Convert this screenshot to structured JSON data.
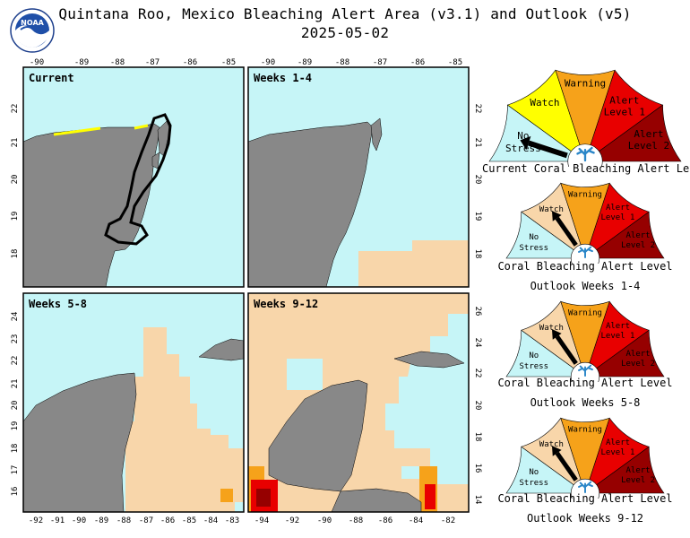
{
  "header": {
    "title": "Quintana Roo, Mexico Bleaching Alert Area (v3.1) and Outlook (v5)",
    "date": "2025-05-02",
    "logo_text": "NOAA"
  },
  "colors": {
    "no_stress": "#c6f5f7",
    "watch": "#f8d6aa",
    "warning": "#f6a21a",
    "alert1": "#e80000",
    "alert2": "#960000",
    "land": "#888888",
    "current_watch": "#ffff00",
    "dial_pointer": "#000000",
    "coral_icon": "#2a86c8"
  },
  "panels": [
    {
      "label": "Current",
      "lon_ticks_top": [
        "-90",
        "-89",
        "-88",
        "-87",
        "-86",
        "-85"
      ],
      "lat_ticks_left": [
        "22",
        "21",
        "20",
        "19",
        "18"
      ],
      "highlight": "Watch along north coast of Yucatán; Quintana Roo region outlined"
    },
    {
      "label": "Weeks 1-4",
      "lon_ticks_top": [
        "-90",
        "-89",
        "-88",
        "-87",
        "-86",
        "-85"
      ],
      "lat_ticks_right": [
        "22",
        "21",
        "20",
        "19",
        "18"
      ]
    },
    {
      "label": "Weeks 5-8",
      "lat_ticks_left": [
        "24",
        "23",
        "22",
        "21",
        "20",
        "19",
        "18",
        "17",
        "16"
      ],
      "lon_ticks_bottom": [
        "-92",
        "-91",
        "-90",
        "-89",
        "-88",
        "-87",
        "-86",
        "-85",
        "-84",
        "-83"
      ]
    },
    {
      "label": "Weeks 9-12",
      "lat_ticks_right": [
        "26",
        "24",
        "22",
        "20",
        "18",
        "16",
        "14"
      ],
      "lon_ticks_bottom": [
        "-94",
        "-92",
        "-90",
        "-88",
        "-86",
        "-84",
        "-82"
      ]
    }
  ],
  "gauges": [
    {
      "level": "No Stress",
      "caption_lines": [
        "Current Coral Bleaching Alert Level"
      ],
      "current_watch_faded": false
    },
    {
      "level": "Watch",
      "caption_lines": [
        "Coral Bleaching Alert Level",
        "Outlook Weeks 1-4"
      ]
    },
    {
      "level": "Watch",
      "caption_lines": [
        "Coral Bleaching Alert Level",
        "Outlook Weeks 5-8"
      ]
    },
    {
      "level": "Watch",
      "caption_lines": [
        "Coral Bleaching Alert Level",
        "Outlook Weeks 9-12"
      ]
    }
  ],
  "gauge_labels": {
    "no_stress": [
      "No",
      "Stress"
    ],
    "watch": "Watch",
    "warning": "Warning",
    "alert1": [
      "Alert",
      "Level 1"
    ],
    "alert2": [
      "Alert",
      "Level 2"
    ]
  }
}
